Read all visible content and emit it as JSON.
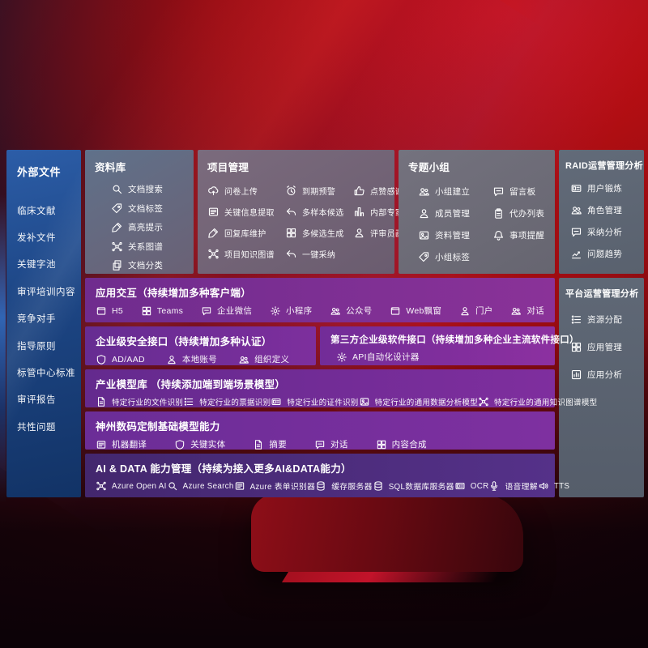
{
  "colors": {
    "background_red": "#ae0e14",
    "sidebar_blue": "#1d4685",
    "panel_gray": "#666f7d",
    "row_purple": "#7b3193",
    "ai_row_indigo": "#4b2d7e"
  },
  "sidebar": {
    "title": "外部文件",
    "items": [
      {
        "label": "临床文献"
      },
      {
        "label": "发补文件"
      },
      {
        "label": "关键字池"
      },
      {
        "label": "审评培训内容"
      },
      {
        "label": "竞争对手"
      },
      {
        "label": "指导原则"
      },
      {
        "label": "标管中心标准"
      },
      {
        "label": "审评报告"
      },
      {
        "label": "共性问题"
      }
    ]
  },
  "panels": {
    "library": {
      "title": "资料库",
      "items": [
        {
          "icon": "doc-search-icon",
          "label": "文档搜索"
        },
        {
          "icon": "doc-tag-icon",
          "label": "文档标签"
        },
        {
          "icon": "highlighter-icon",
          "label": "高亮提示"
        },
        {
          "icon": "relation-graph-icon",
          "label": "关系图谱"
        },
        {
          "icon": "doc-classify-icon",
          "label": "文档分类"
        }
      ]
    },
    "project": {
      "title": "项目管理",
      "items": [
        {
          "icon": "upload-cloud-icon",
          "label": "问卷上传"
        },
        {
          "icon": "alarm-icon",
          "label": "到期预警"
        },
        {
          "icon": "thumbs-up-icon",
          "label": "点赞感谢"
        },
        {
          "icon": "info-extract-icon",
          "label": "关键信息提取"
        },
        {
          "icon": "reply-arrow-icon",
          "label": "多样本候选"
        },
        {
          "icon": "ranking-icon",
          "label": "内部专家排名"
        },
        {
          "icon": "pen-icon",
          "label": "回复库维护"
        },
        {
          "icon": "multi-generate-icon",
          "label": "多候选生成"
        },
        {
          "icon": "reviewer-avatar-icon",
          "label": "评审员画像"
        },
        {
          "icon": "knowledge-graph-icon",
          "label": "项目知识图谱"
        },
        {
          "icon": "adopt-arrow-icon",
          "label": "一键采纳"
        }
      ]
    },
    "group": {
      "title": "专题小组",
      "items": [
        {
          "icon": "team-icon",
          "label": "小组建立"
        },
        {
          "icon": "message-board-icon",
          "label": "留言板"
        },
        {
          "icon": "member-manage-icon",
          "label": "成员管理"
        },
        {
          "icon": "todo-list-icon",
          "label": "代办列表"
        },
        {
          "icon": "album-icon",
          "label": "资料管理"
        },
        {
          "icon": "bell-icon",
          "label": "事项提醒"
        },
        {
          "icon": "group-tag-icon",
          "label": "小组标签"
        }
      ]
    },
    "raid": {
      "title": "RAID运营管理分析",
      "items": [
        {
          "icon": "id-card-icon",
          "label": "用户锻炼"
        },
        {
          "icon": "roles-icon",
          "label": "角色管理"
        },
        {
          "icon": "qa-bubble-icon",
          "label": "采纳分析"
        },
        {
          "icon": "trend-chart-icon",
          "label": "问题趋势"
        }
      ]
    },
    "platform": {
      "title": "平台运营管理分析",
      "items": [
        {
          "icon": "resource-list-icon",
          "label": "资源分配"
        },
        {
          "icon": "app-grid-icon",
          "label": "应用管理"
        },
        {
          "icon": "app-chart-icon",
          "label": "应用分析"
        }
      ]
    }
  },
  "rows": {
    "interaction": {
      "title": "应用交互（持续增加多种客户端）",
      "items": [
        {
          "icon": "h5-icon",
          "label": "H5"
        },
        {
          "icon": "teams-icon",
          "label": "Teams"
        },
        {
          "icon": "wecom-icon",
          "label": "企业微信"
        },
        {
          "icon": "miniprogram-icon",
          "label": "小程序"
        },
        {
          "icon": "official-account-icon",
          "label": "公众号"
        },
        {
          "icon": "web-window-icon",
          "label": "Web飘窗"
        },
        {
          "icon": "portal-icon",
          "label": "门户"
        },
        {
          "icon": "dialog-icon",
          "label": "对话"
        }
      ]
    },
    "security": {
      "title": "企业级安全接口（持续增加多种认证）",
      "items": [
        {
          "icon": "azure-ad-icon",
          "label": "AD/AAD"
        },
        {
          "icon": "local-account-icon",
          "label": "本地账号"
        },
        {
          "icon": "org-define-icon",
          "label": "组织定义"
        }
      ]
    },
    "thirdparty": {
      "title": "第三方企业级软件接口（持续增加多种企业主流软件接口）",
      "items": [
        {
          "icon": "api-gear-icon",
          "label": "API自动化设计器"
        }
      ]
    },
    "industry_models": {
      "title": "产业模型库 （持续添加端到端场景模型）",
      "items": [
        {
          "icon": "doc-recognize-icon",
          "label": "特定行业的文件识别"
        },
        {
          "icon": "receipt-icon",
          "label": "特定行业的票据识别"
        },
        {
          "icon": "cert-card-icon",
          "label": "特定行业的证件识别"
        },
        {
          "icon": "data-model-icon",
          "label": "特定行业的通用数据分析模型"
        },
        {
          "icon": "knowledge-graph-icon",
          "label": "特定行业的通用知识图谱模型"
        }
      ]
    },
    "base_models": {
      "title": "神州数码定制基础模型能力",
      "items": [
        {
          "icon": "translate-icon",
          "label": "机器翻译"
        },
        {
          "icon": "entity-shield-icon",
          "label": "关键实体"
        },
        {
          "icon": "summary-doc-icon",
          "label": "摘要"
        },
        {
          "icon": "chat-icon",
          "label": "对话"
        },
        {
          "icon": "compose-grid-icon",
          "label": "内容合成"
        }
      ]
    },
    "ai_data": {
      "title": "AI & DATA 能力管理（持续为接入更多AI&DATA能力）",
      "items": [
        {
          "icon": "openai-icon",
          "label": "Azure Open AI"
        },
        {
          "icon": "azure-search-icon",
          "label": "Azure Search"
        },
        {
          "icon": "form-recognizer-icon",
          "label": "Azure 表单识别器"
        },
        {
          "icon": "cache-server-icon",
          "label": "缓存服务器"
        },
        {
          "icon": "sql-db-icon",
          "label": "SQL数据库服务器"
        },
        {
          "icon": "ocr-icon",
          "label": "OCR"
        },
        {
          "icon": "speech-icon",
          "label": "语音理解"
        },
        {
          "icon": "tts-icon",
          "label": "TTS"
        }
      ]
    }
  }
}
